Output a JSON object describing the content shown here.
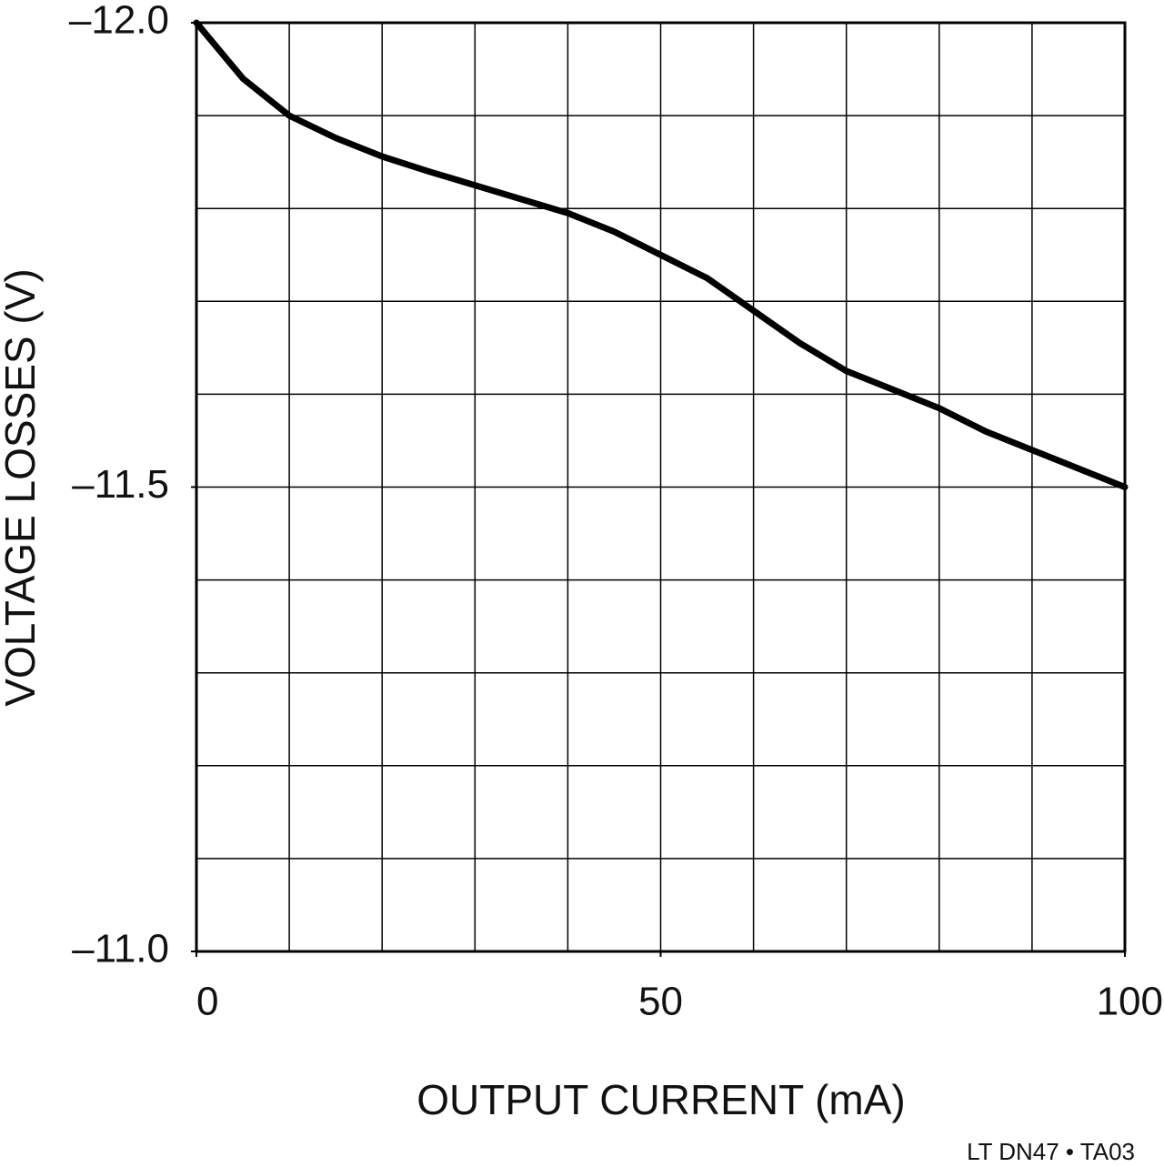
{
  "chart_data": {
    "type": "line",
    "x_label": "OUTPUT CURRENT (mA)",
    "y_label": "VOLTAGE LOSSES (V)",
    "note": "LT DN47 • TA03",
    "x": [
      0,
      5,
      10,
      15,
      20,
      25,
      30,
      35,
      40,
      45,
      50,
      55,
      60,
      65,
      70,
      75,
      80,
      85,
      90,
      95,
      100
    ],
    "series": [
      {
        "color": "#000000",
        "values": [
          -12.0,
          -11.94,
          -11.9,
          -11.876,
          -11.856,
          -11.84,
          -11.825,
          -11.81,
          -11.795,
          -11.775,
          -11.75,
          -11.725,
          -11.69,
          -11.655,
          -11.625,
          -11.605,
          -11.585,
          -11.56,
          -11.54,
          -11.52,
          -11.5
        ]
      }
    ],
    "xlim": [
      0,
      100
    ],
    "ylim": [
      -11.0,
      -12.0
    ],
    "xticks": [
      0,
      50,
      100
    ],
    "yticks": [
      {
        "value": -12.0,
        "label": "–12.0"
      },
      {
        "value": -11.5,
        "label": "–11.5"
      },
      {
        "value": -11.0,
        "label": "–11.0"
      }
    ],
    "xgrid": [
      10,
      20,
      30,
      40,
      50,
      60,
      70,
      80,
      90
    ],
    "ygrid": [
      -11.9,
      -11.8,
      -11.7,
      -11.6,
      -11.5,
      -11.4,
      -11.3,
      -11.2,
      -11.1
    ],
    "grid": true
  }
}
